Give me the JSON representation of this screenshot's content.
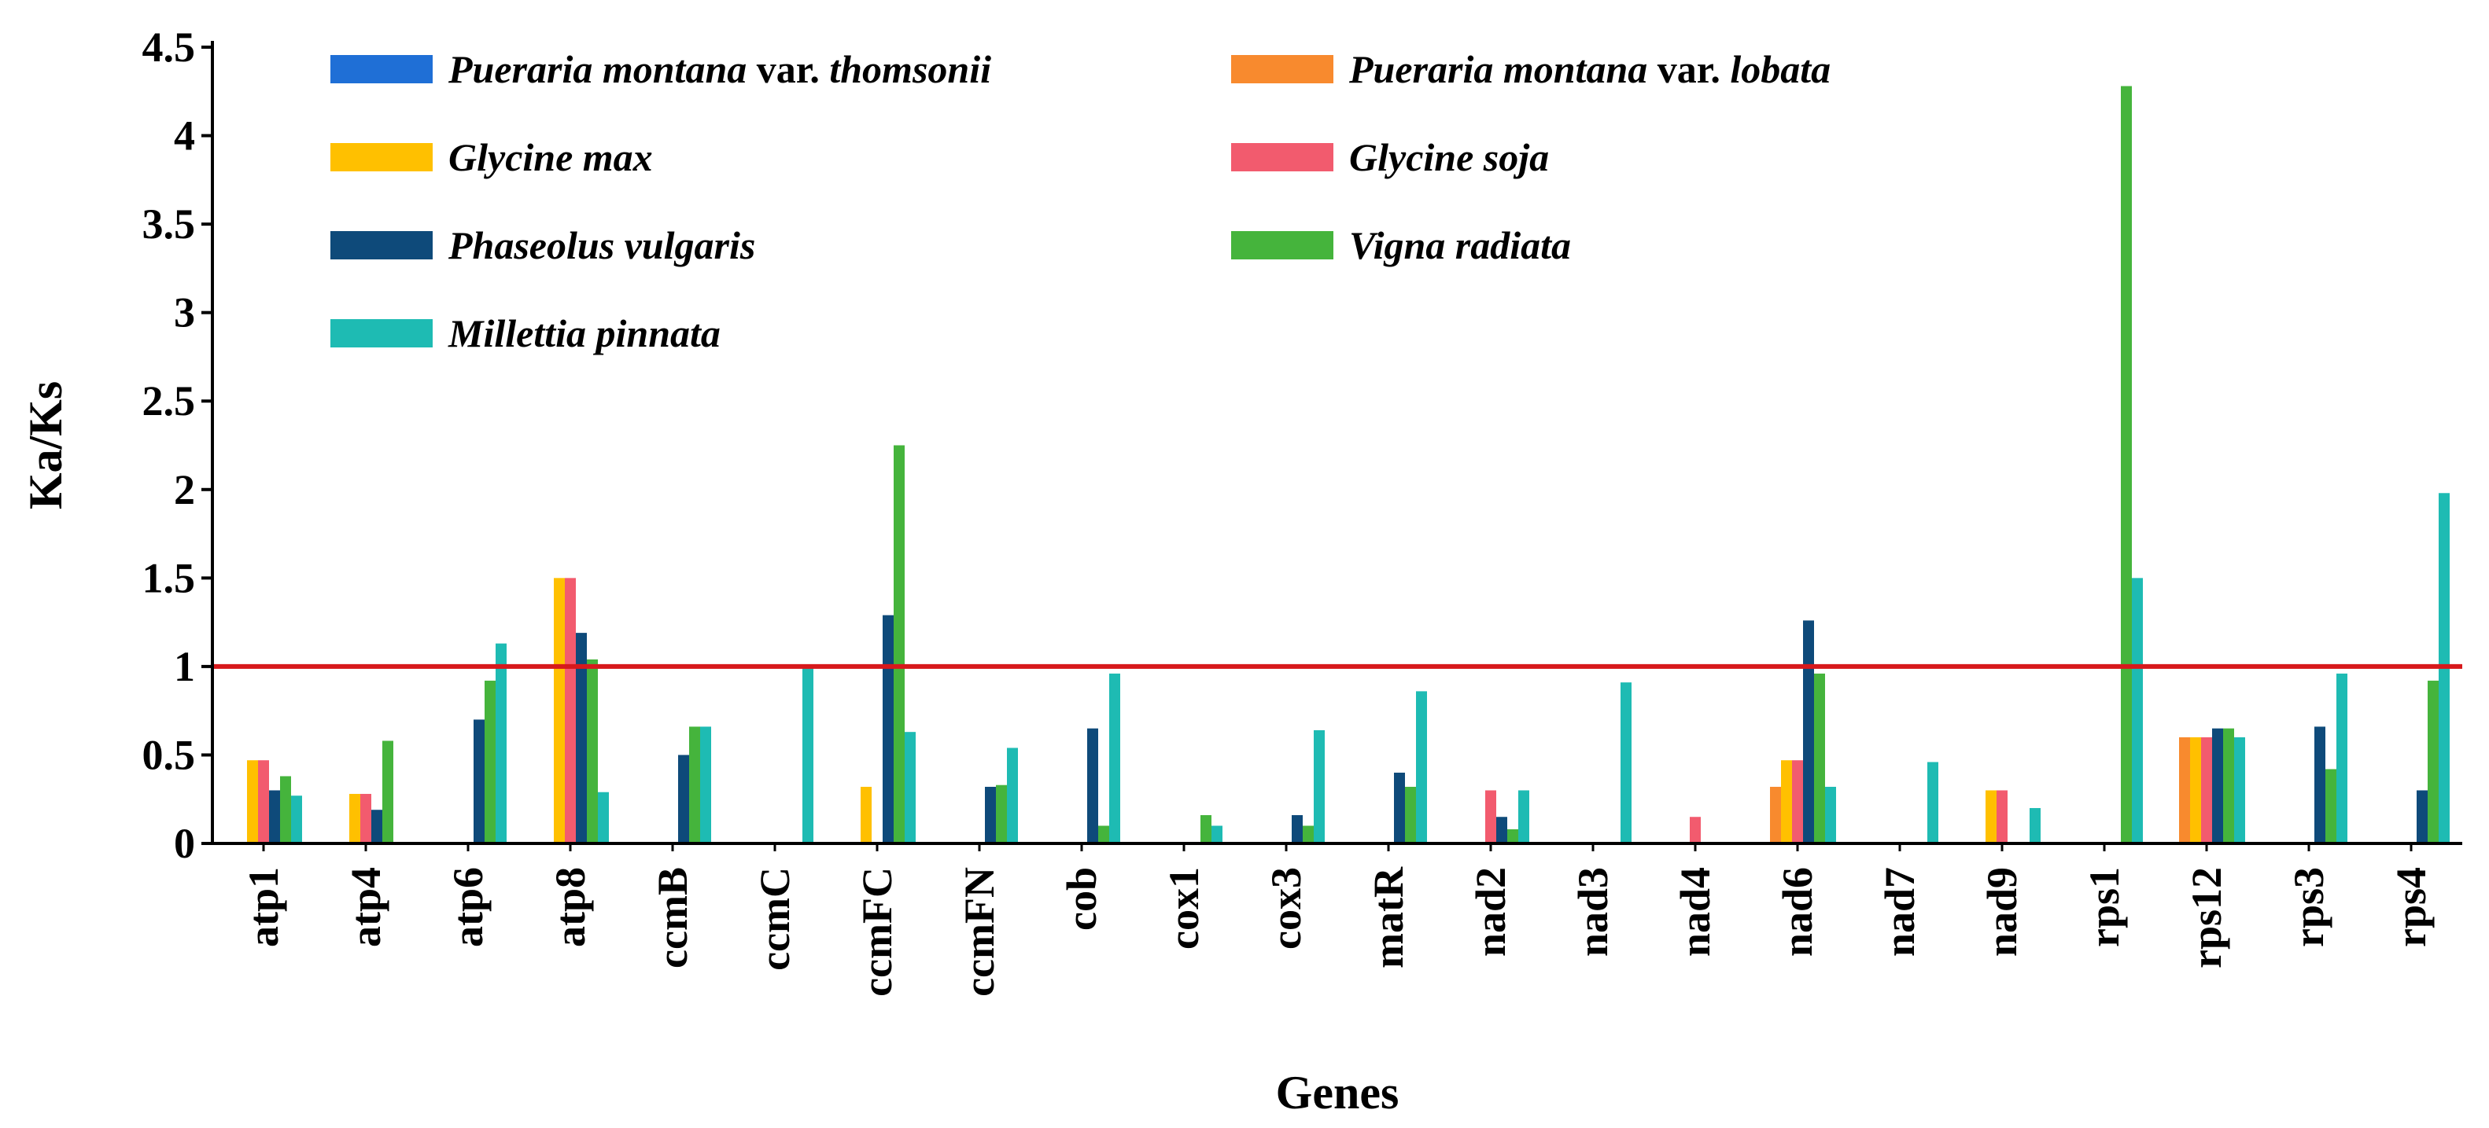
{
  "chart_data": {
    "type": "bar",
    "title": "",
    "xlabel": "Genes",
    "ylabel": "Ka/Ks",
    "ylim": [
      0,
      4.5
    ],
    "yticks": [
      "0",
      "0.5",
      "1",
      "1.5",
      "2",
      "2.5",
      "3",
      "3.5",
      "4",
      "4.5"
    ],
    "grid": false,
    "legend_position": "top",
    "reference_line": {
      "y": 1,
      "color": "#D7191C"
    },
    "categories": [
      "atp1",
      "atp4",
      "atp6",
      "atp8",
      "ccmB",
      "ccmC",
      "ccmFC",
      "ccmFN",
      "cob",
      "cox1",
      "cox3",
      "matR",
      "nad2",
      "nad3",
      "nad4",
      "nad6",
      "nad7",
      "nad9",
      "rps1",
      "rps12",
      "rps3",
      "rps4"
    ],
    "series": [
      {
        "name": "Pueraria montana var. thomsonii",
        "legend_parts": [
          [
            "Pueraria montana",
            true
          ],
          [
            " var. ",
            false
          ],
          [
            "thomsonii",
            true
          ]
        ],
        "color": "#1F6FD6",
        "values": [
          0,
          0,
          0,
          0,
          0,
          0,
          0,
          0,
          0,
          0,
          0,
          0,
          0,
          0,
          0,
          0,
          0,
          0,
          0,
          0,
          0,
          0
        ]
      },
      {
        "name": "Pueraria montana var. lobata",
        "legend_parts": [
          [
            "Pueraria montana",
            true
          ],
          [
            " var. ",
            false
          ],
          [
            "lobata",
            true
          ]
        ],
        "color": "#F88A2E",
        "values": [
          0,
          0,
          0,
          0,
          0,
          0,
          0,
          0,
          0,
          0,
          0,
          0,
          0,
          0,
          0,
          0.32,
          0,
          0,
          0,
          0.6,
          0,
          0
        ]
      },
      {
        "name": "Glycine max",
        "legend_parts": [
          [
            "Glycine max",
            true
          ]
        ],
        "color": "#FFC000",
        "values": [
          0.47,
          0.28,
          0,
          1.5,
          0,
          0,
          0.32,
          0,
          0,
          0,
          0,
          0,
          0,
          0,
          0,
          0.47,
          0,
          0.3,
          0,
          0.6,
          0,
          0
        ]
      },
      {
        "name": "Glycine soja",
        "legend_parts": [
          [
            "Glycine soja",
            true
          ]
        ],
        "color": "#F25B6E",
        "values": [
          0.47,
          0.28,
          0,
          1.5,
          0,
          0,
          0,
          0,
          0,
          0,
          0,
          0,
          0.3,
          0,
          0.15,
          0.47,
          0,
          0.3,
          0,
          0.6,
          0,
          0
        ]
      },
      {
        "name": "Phaseolus vulgaris",
        "legend_parts": [
          [
            "Phaseolus vulgaris",
            true
          ]
        ],
        "color": "#0E4A7A",
        "values": [
          0.3,
          0.19,
          0.7,
          1.19,
          0.5,
          0,
          1.29,
          0.32,
          0.65,
          0,
          0.16,
          0.4,
          0.15,
          0,
          0,
          1.26,
          0,
          0,
          0,
          0.65,
          0.66,
          0.3
        ]
      },
      {
        "name": "Vigna radiata",
        "legend_parts": [
          [
            "Vigna radiata",
            true
          ]
        ],
        "color": "#45B43C",
        "values": [
          0.38,
          0.58,
          0.92,
          1.04,
          0.66,
          0,
          2.25,
          0.33,
          0.1,
          0.16,
          0.1,
          0.32,
          0.08,
          0,
          0,
          0.96,
          0,
          0,
          4.28,
          0.65,
          0.42,
          0.92
        ]
      },
      {
        "name": "Millettia pinnata",
        "legend_parts": [
          [
            "Millettia pinnata",
            true
          ]
        ],
        "color": "#1EBBB3",
        "values": [
          0.27,
          0,
          1.13,
          0.29,
          0.66,
          0.99,
          0.63,
          0.54,
          0.96,
          0.1,
          0.64,
          0.86,
          0.3,
          0.91,
          0,
          0.32,
          0.46,
          0.2,
          1.5,
          0.6,
          0.96,
          1.98
        ]
      }
    ]
  }
}
